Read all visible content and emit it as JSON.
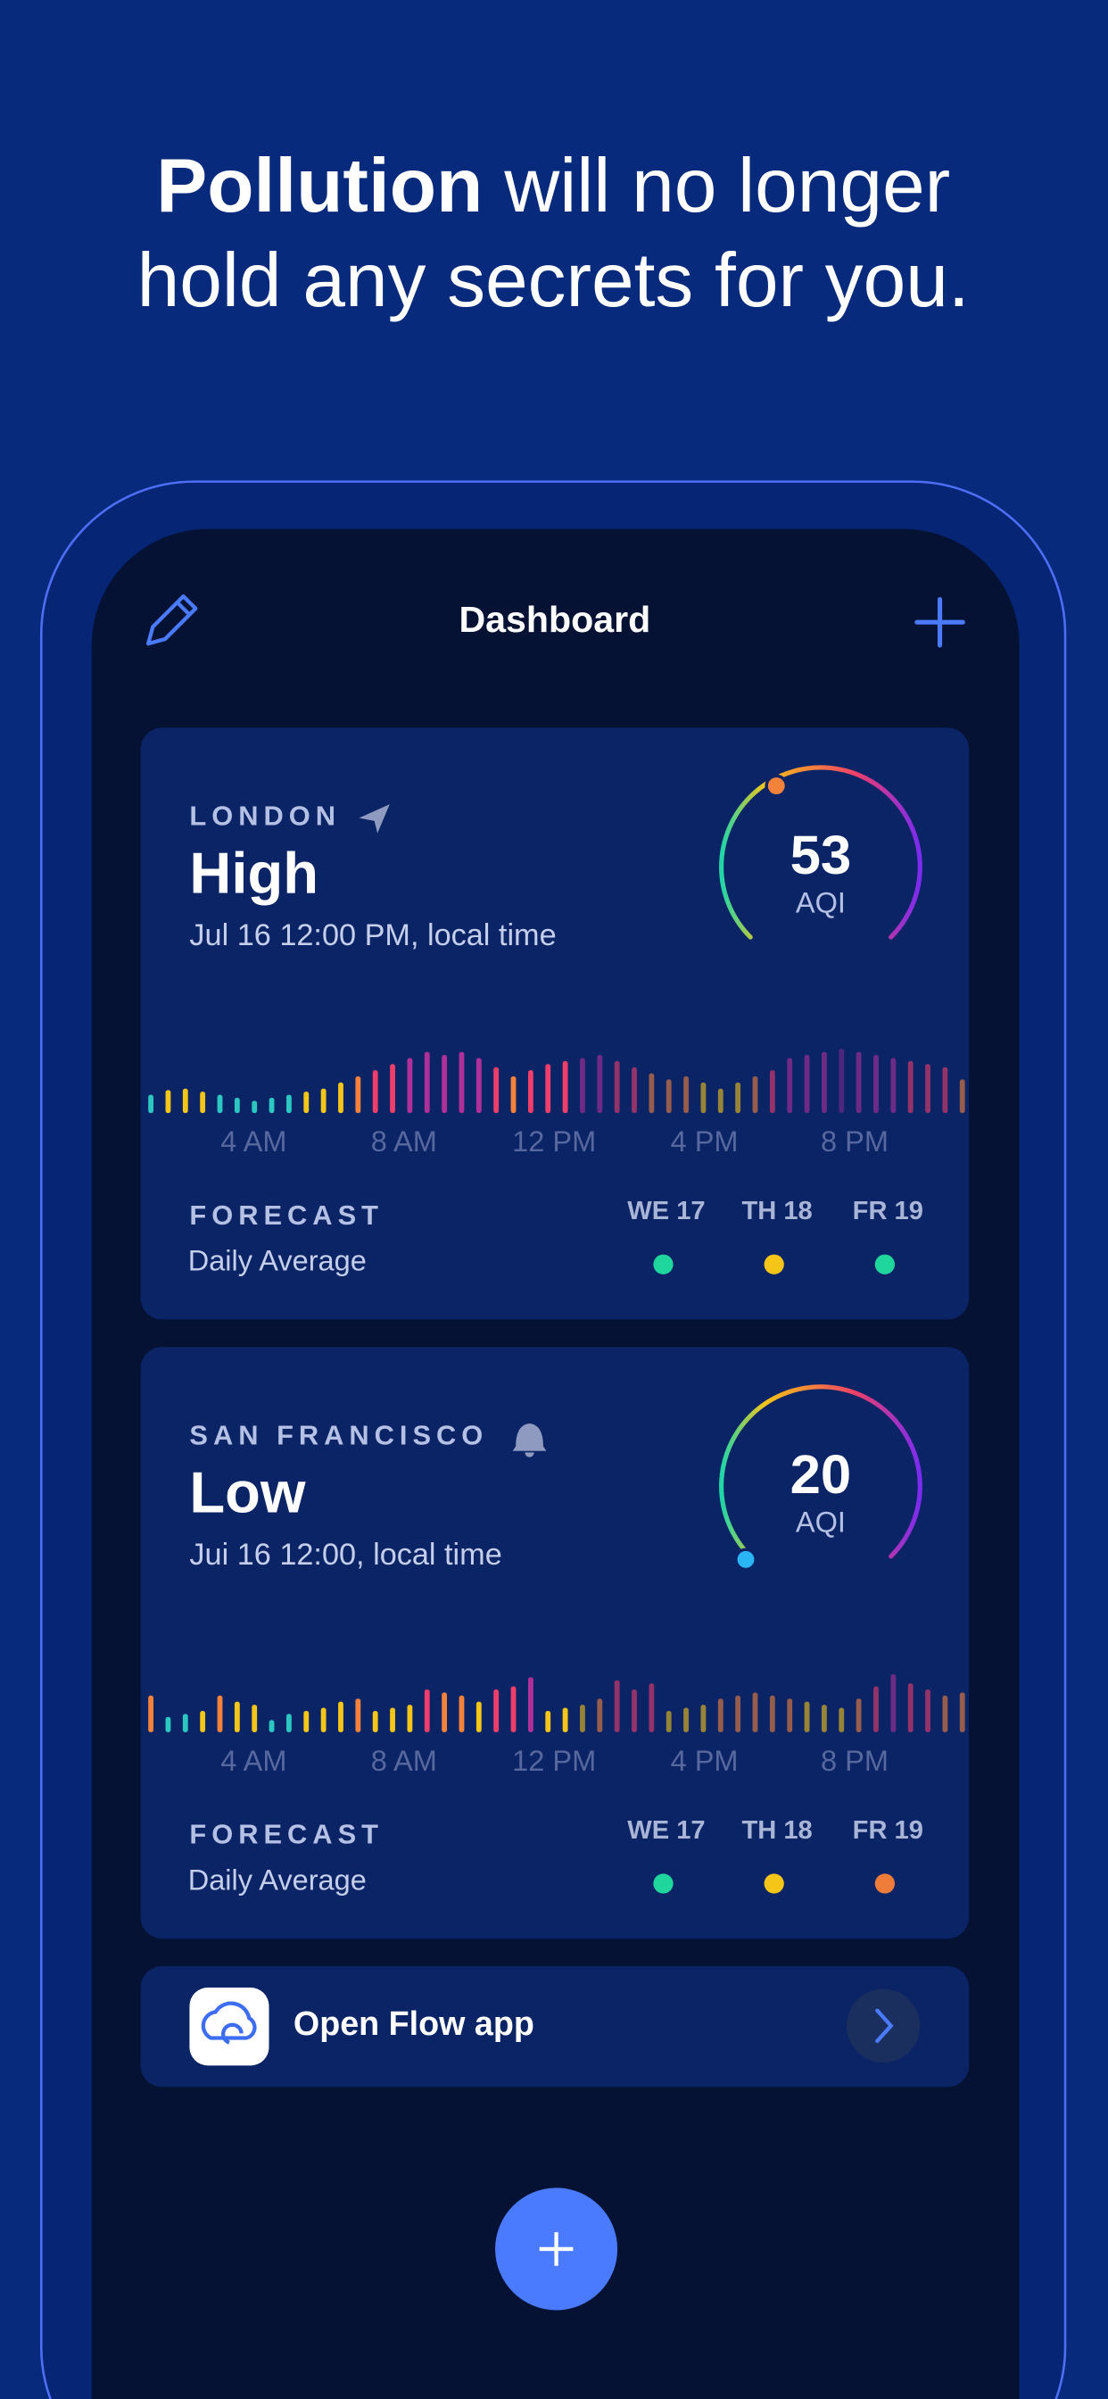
{
  "header": {
    "title_bold": "Pollution",
    "title_line1": "will no longer",
    "title_line2": "hold any secrets for you."
  },
  "app": {
    "title": "Dashboard"
  },
  "cards": [
    {
      "city": "LONDON",
      "level": "High",
      "time": "Jul 16 12:00 PM, local time",
      "aqi": 53,
      "aqi_unit": "AQI",
      "hourly": [
        12,
        15,
        16,
        14,
        12,
        10,
        8,
        10,
        12,
        14,
        16,
        20,
        24,
        28,
        32,
        36,
        40,
        38,
        40,
        36,
        30,
        24,
        28,
        32,
        34,
        36,
        38,
        34,
        30,
        26,
        22,
        24,
        20,
        16,
        20,
        24,
        28,
        36,
        38,
        40,
        42,
        40,
        38,
        36,
        34,
        32,
        30,
        22
      ],
      "hour_labels": [
        "4 AM",
        "8 AM",
        "12 PM",
        "4 PM",
        "8 PM"
      ],
      "forecast_title": "FORECAST",
      "forecast_subtitle": "Daily Average",
      "forecast": [
        {
          "day": "WE 17",
          "color": "#1fd69c"
        },
        {
          "day": "TH 18",
          "color": "#f5c518"
        },
        {
          "day": "FR 19",
          "color": "#1fd69c"
        }
      ]
    },
    {
      "city": "SAN FRANCISCO",
      "level": "Low",
      "time": "Jui 16 12:00, local time",
      "aqi": 20,
      "aqi_unit": "AQI",
      "hourly": [
        24,
        10,
        12,
        14,
        24,
        20,
        18,
        8,
        12,
        14,
        16,
        20,
        22,
        14,
        16,
        18,
        28,
        26,
        24,
        20,
        28,
        30,
        36,
        14,
        16,
        18,
        22,
        34,
        28,
        32,
        14,
        16,
        18,
        22,
        24,
        26,
        24,
        22,
        20,
        18,
        16,
        22,
        30,
        38,
        32,
        28,
        24,
        26
      ],
      "hour_labels": [
        "4 AM",
        "8 AM",
        "12 PM",
        "4 PM",
        "8 PM"
      ],
      "forecast_title": "FORECAST",
      "forecast_subtitle": "Daily Average",
      "forecast": [
        {
          "day": "WE 17",
          "color": "#1fd69c"
        },
        {
          "day": "TH 18",
          "color": "#f5c518"
        },
        {
          "day": "FR 19",
          "color": "#f07c3a"
        }
      ]
    }
  ],
  "open_app": {
    "label": "Open Flow app"
  }
}
